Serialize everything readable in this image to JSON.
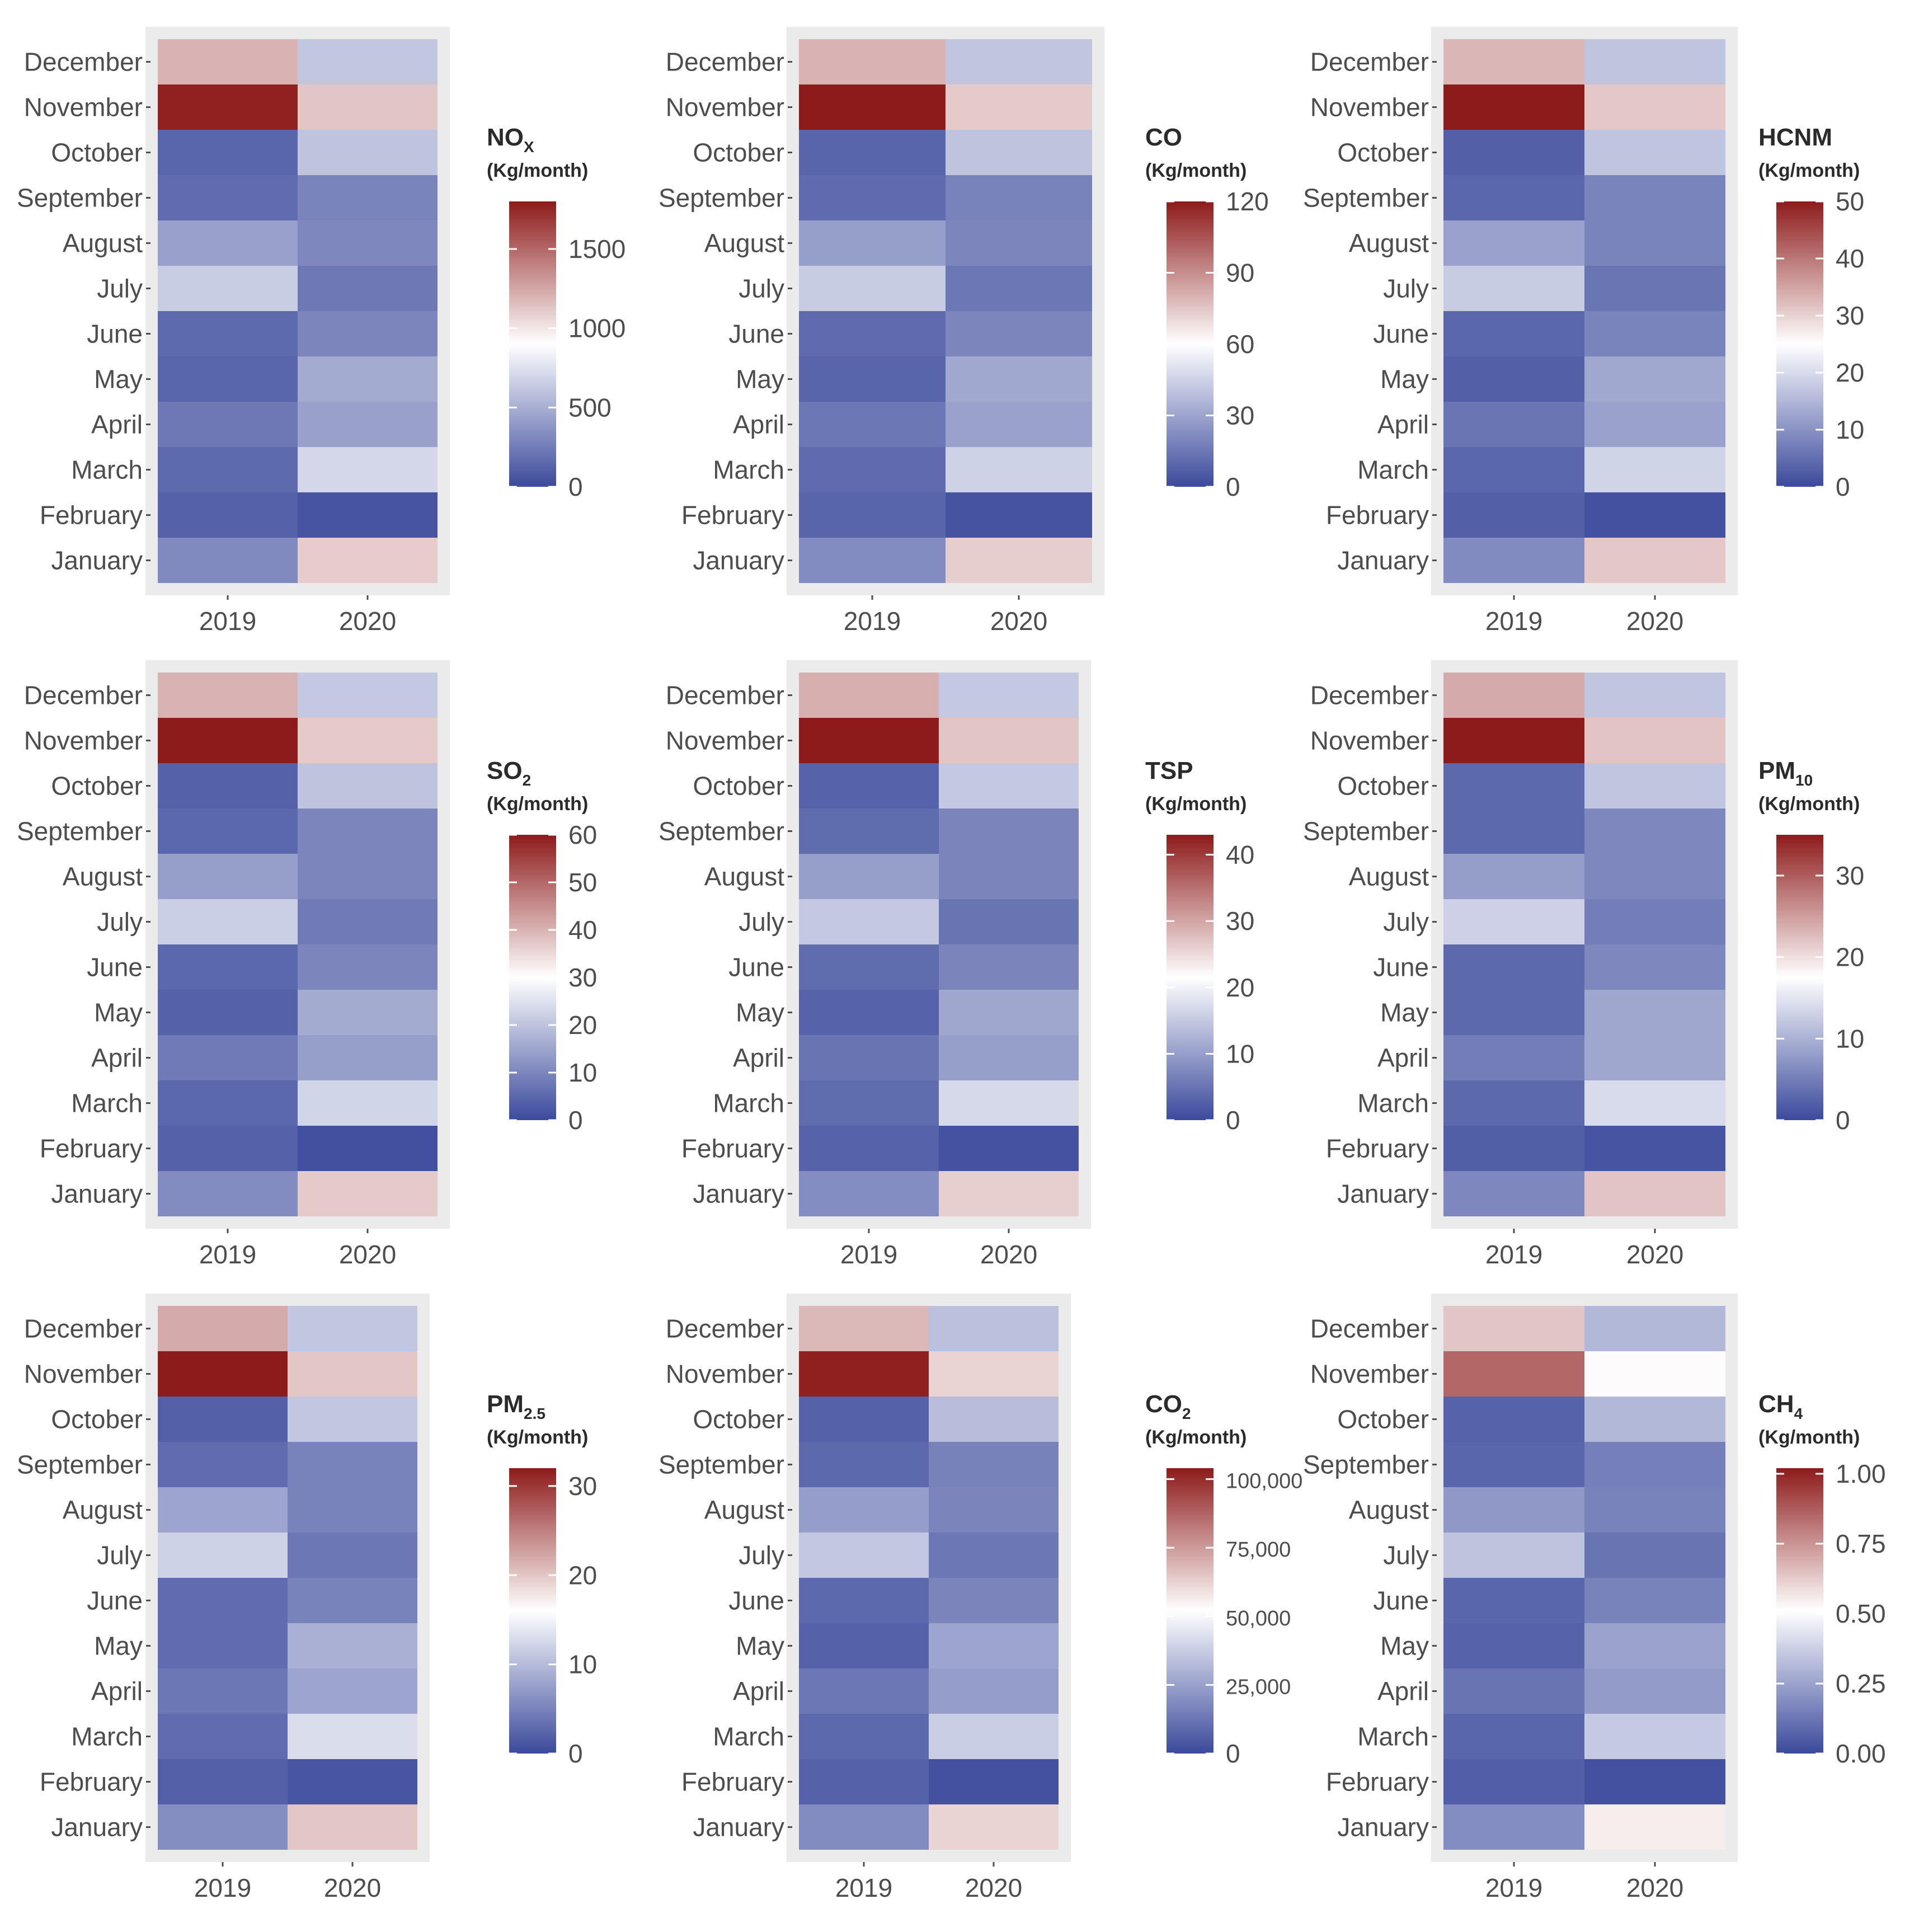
{
  "chart_data": [
    {
      "type": "heatmap",
      "title": "NOX",
      "title_main": "NO",
      "title_sub": "X",
      "unit": "(Kg/month)",
      "x": [
        "2019",
        "2020"
      ],
      "y": [
        "January",
        "February",
        "March",
        "April",
        "May",
        "June",
        "July",
        "August",
        "September",
        "October",
        "November",
        "December"
      ],
      "values": [
        [
          320,
          1100
        ],
        [
          120,
          50
        ],
        [
          160,
          700
        ],
        [
          230,
          430
        ],
        [
          140,
          480
        ],
        [
          160,
          300
        ],
        [
          650,
          230
        ],
        [
          430,
          310
        ],
        [
          170,
          290
        ],
        [
          140,
          600
        ],
        [
          1780,
          1130
        ],
        [
          1200,
          620
        ]
      ],
      "ticks": [
        0,
        500,
        1000,
        1500
      ],
      "tick_labels": [
        "0",
        "500",
        "1000",
        "1500"
      ],
      "scale_max": 1800,
      "scale_mid": 900
    },
    {
      "type": "heatmap",
      "title": "CO",
      "title_main": "CO",
      "title_sub": "",
      "unit": "(Kg/month)",
      "x": [
        "2019",
        "2020"
      ],
      "y": [
        "January",
        "February",
        "March",
        "April",
        "May",
        "June",
        "July",
        "August",
        "September",
        "October",
        "November",
        "December"
      ],
      "values": [
        [
          22,
          73
        ],
        [
          9,
          3
        ],
        [
          11,
          45
        ],
        [
          15,
          29
        ],
        [
          9,
          31
        ],
        [
          11,
          20
        ],
        [
          43,
          15
        ],
        [
          28,
          20
        ],
        [
          11,
          19
        ],
        [
          9,
          40
        ],
        [
          120,
          74
        ],
        [
          80,
          41
        ]
      ],
      "ticks": [
        0,
        30,
        60,
        90,
        120
      ],
      "tick_labels": [
        "0",
        "30",
        "60",
        "90",
        "120"
      ],
      "scale_max": 120,
      "scale_mid": 60
    },
    {
      "type": "heatmap",
      "title": "HCNM",
      "title_main": "HCNM",
      "title_sub": "",
      "unit": "(Kg/month)",
      "x": [
        "2019",
        "2020"
      ],
      "y": [
        "January",
        "February",
        "March",
        "April",
        "May",
        "June",
        "July",
        "August",
        "September",
        "October",
        "November",
        "December"
      ],
      "values": [
        [
          9,
          31
        ],
        [
          3,
          1
        ],
        [
          4,
          19
        ],
        [
          6,
          12
        ],
        [
          3,
          13
        ],
        [
          4,
          8
        ],
        [
          18,
          6
        ],
        [
          12,
          8
        ],
        [
          4,
          8
        ],
        [
          3,
          17
        ],
        [
          50,
          31
        ],
        [
          33,
          17
        ]
      ],
      "ticks": [
        0,
        10,
        20,
        30,
        40,
        50
      ],
      "tick_labels": [
        "0",
        "10",
        "20",
        "30",
        "40",
        "50"
      ],
      "scale_max": 50,
      "scale_mid": 25
    },
    {
      "type": "heatmap",
      "title": "SO2",
      "title_main": "SO",
      "title_sub": "2",
      "unit": "(Kg/month)",
      "x": [
        "2019",
        "2020"
      ],
      "y": [
        "January",
        "February",
        "March",
        "April",
        "May",
        "June",
        "July",
        "August",
        "September",
        "October",
        "November",
        "December"
      ],
      "values": [
        [
          11,
          37
        ],
        [
          4,
          1
        ],
        [
          5,
          23
        ],
        [
          8,
          14
        ],
        [
          4,
          16
        ],
        [
          5,
          10
        ],
        [
          22,
          8
        ],
        [
          14,
          10
        ],
        [
          5,
          10
        ],
        [
          4,
          20
        ],
        [
          60,
          37
        ],
        [
          40,
          21
        ]
      ],
      "ticks": [
        0,
        10,
        20,
        30,
        40,
        50,
        60
      ],
      "tick_labels": [
        "0",
        "10",
        "20",
        "30",
        "40",
        "50",
        "60"
      ],
      "scale_max": 60,
      "scale_mid": 30
    },
    {
      "type": "heatmap",
      "title": "TSP",
      "title_main": "TSP",
      "title_sub": "",
      "unit": "(Kg/month)",
      "x": [
        "2019",
        "2020"
      ],
      "y": [
        "January",
        "February",
        "March",
        "April",
        "May",
        "June",
        "July",
        "August",
        "September",
        "October",
        "November",
        "December"
      ],
      "values": [
        [
          8,
          26
        ],
        [
          3,
          1
        ],
        [
          4,
          17
        ],
        [
          5,
          10
        ],
        [
          3,
          11
        ],
        [
          4,
          7
        ],
        [
          15,
          5
        ],
        [
          10,
          7
        ],
        [
          4,
          7
        ],
        [
          3,
          15
        ],
        [
          43,
          27
        ],
        [
          29,
          15
        ]
      ],
      "ticks": [
        0,
        10,
        20,
        30,
        40
      ],
      "tick_labels": [
        "0",
        "10",
        "20",
        "30",
        "40"
      ],
      "scale_max": 43,
      "scale_mid": 21.5
    },
    {
      "type": "heatmap",
      "title": "PM10",
      "title_main": "PM",
      "title_sub": "10",
      "unit": "(Kg/month)",
      "x": [
        "2019",
        "2020"
      ],
      "y": [
        "January",
        "February",
        "March",
        "April",
        "May",
        "June",
        "July",
        "August",
        "September",
        "October",
        "November",
        "December"
      ],
      "values": [
        [
          6,
          22
        ],
        [
          2,
          1
        ],
        [
          3,
          14
        ],
        [
          5,
          9
        ],
        [
          3,
          9
        ],
        [
          3,
          6
        ],
        [
          13,
          5
        ],
        [
          8,
          6
        ],
        [
          3,
          6
        ],
        [
          3,
          12
        ],
        [
          35,
          22
        ],
        [
          24,
          12
        ]
      ],
      "ticks": [
        0,
        10,
        20,
        30
      ],
      "tick_labels": [
        "0",
        "10",
        "20",
        "30"
      ],
      "scale_max": 35,
      "scale_mid": 17.5
    },
    {
      "type": "heatmap",
      "title": "PM2.5",
      "title_main": "PM",
      "title_sub": "2.5",
      "unit": "(Kg/month)",
      "x": [
        "2019",
        "2020"
      ],
      "y": [
        "January",
        "February",
        "March",
        "April",
        "May",
        "June",
        "July",
        "August",
        "September",
        "October",
        "November",
        "December"
      ],
      "values": [
        [
          6,
          20
        ],
        [
          2,
          1
        ],
        [
          3,
          13
        ],
        [
          4,
          8
        ],
        [
          3,
          9
        ],
        [
          3,
          5
        ],
        [
          12,
          4
        ],
        [
          8,
          5
        ],
        [
          3,
          5
        ],
        [
          2,
          11
        ],
        [
          32,
          20
        ],
        [
          22,
          11
        ]
      ],
      "ticks": [
        0,
        10,
        20,
        30
      ],
      "tick_labels": [
        "0",
        "10",
        "20",
        "30"
      ],
      "scale_max": 32,
      "scale_mid": 16
    },
    {
      "type": "heatmap",
      "title": "CO2",
      "title_main": "CO",
      "title_sub": "2",
      "unit": "(Kg/month)",
      "x": [
        "2019",
        "2020"
      ],
      "y": [
        "January",
        "February",
        "March",
        "April",
        "May",
        "June",
        "July",
        "August",
        "September",
        "October",
        "November",
        "December"
      ],
      "values": [
        [
          19000,
          62000
        ],
        [
          7000,
          2000
        ],
        [
          9000,
          38000
        ],
        [
          13000,
          24000
        ],
        [
          7000,
          26000
        ],
        [
          9000,
          17000
        ],
        [
          36000,
          13000
        ],
        [
          24000,
          17000
        ],
        [
          9000,
          16000
        ],
        [
          7000,
          33000
        ],
        [
          103000,
          62000
        ],
        [
          68000,
          34000
        ]
      ],
      "ticks": [
        0,
        25000,
        50000,
        75000,
        100000
      ],
      "tick_labels": [
        "0",
        "25,000",
        "50,000",
        "75,000",
        "100,000"
      ],
      "scale_max": 104000,
      "scale_mid": 52000
    },
    {
      "type": "heatmap",
      "title": "CH4",
      "title_main": "CH",
      "title_sub": "4",
      "unit": "(Kg/month)",
      "x": [
        "2019",
        "2020"
      ],
      "y": [
        "January",
        "February",
        "March",
        "April",
        "May",
        "June",
        "July",
        "August",
        "September",
        "October",
        "November",
        "December"
      ],
      "values": [
        [
          0.19,
          0.55
        ],
        [
          0.06,
          0.02
        ],
        [
          0.08,
          0.36
        ],
        [
          0.12,
          0.23
        ],
        [
          0.07,
          0.25
        ],
        [
          0.08,
          0.16
        ],
        [
          0.34,
          0.12
        ],
        [
          0.22,
          0.16
        ],
        [
          0.08,
          0.15
        ],
        [
          0.07,
          0.31
        ],
        [
          0.85,
          0.52
        ],
        [
          0.64,
          0.31
        ]
      ],
      "ticks": [
        0,
        0.25,
        0.5,
        0.75,
        1
      ],
      "tick_labels": [
        "0.00",
        "0.25",
        "0.50",
        "0.75",
        "1.00"
      ],
      "scale_max": 1.02,
      "scale_mid": 0.51
    }
  ],
  "colors": {
    "low": "#3b4a9c",
    "mid": "#ffffff",
    "high": "#8e1b1b",
    "panel_bg": "#ebebeb",
    "axis_text": "#4d4d4d",
    "title_text": "#2b2b2b"
  }
}
